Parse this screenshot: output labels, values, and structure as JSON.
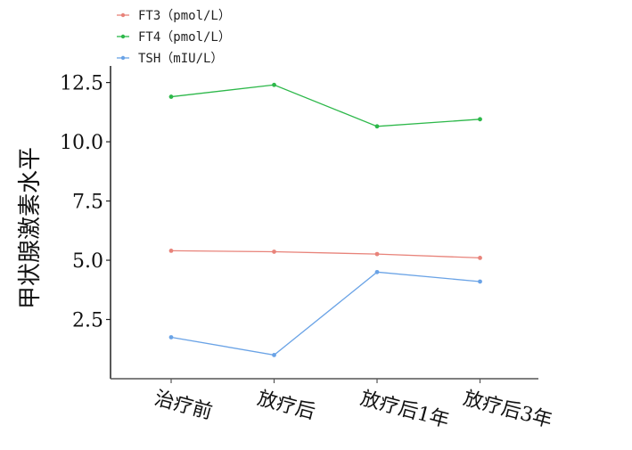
{
  "chart_data": {
    "type": "line",
    "title": "",
    "xlabel": "",
    "ylabel": "甲状腺激素水平",
    "categories": [
      "治疗前",
      "放疗后",
      "放疗后1年",
      "放疗后3年"
    ],
    "yticks": [
      "2.5",
      "5.0",
      "7.5",
      "10.0",
      "12.5"
    ],
    "ylim": [
      0.0,
      13.2
    ],
    "grid": false,
    "legend_position": "top-left",
    "series": [
      {
        "name": "FT3（pmol/L）",
        "color": "#e8837a",
        "values": [
          5.4,
          5.36,
          5.26,
          5.1
        ]
      },
      {
        "name": "FT4（pmol/L）",
        "color": "#2db84a",
        "values": [
          11.9,
          12.4,
          10.65,
          10.95
        ]
      },
      {
        "name": "TSH（mIU/L）",
        "color": "#6aa3e6",
        "values": [
          1.75,
          1.0,
          4.5,
          4.1
        ]
      }
    ]
  }
}
